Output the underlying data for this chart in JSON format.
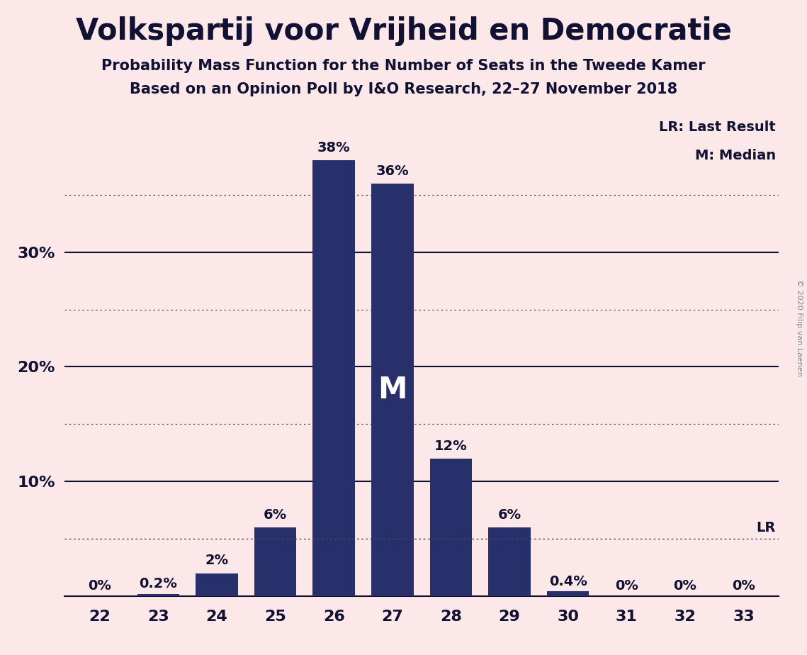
{
  "title": "Volkspartij voor Vrijheid en Democratie",
  "subtitle1": "Probability Mass Function for the Number of Seats in the Tweede Kamer",
  "subtitle2": "Based on an Opinion Poll by I&O Research, 22–27 November 2018",
  "copyright": "© 2020 Filip van Laenen",
  "categories": [
    22,
    23,
    24,
    25,
    26,
    27,
    28,
    29,
    30,
    31,
    32,
    33
  ],
  "values": [
    0.0,
    0.2,
    2.0,
    6.0,
    38.0,
    36.0,
    12.0,
    6.0,
    0.4,
    0.0,
    0.0,
    0.0
  ],
  "labels": [
    "0%",
    "0.2%",
    "2%",
    "6%",
    "38%",
    "36%",
    "12%",
    "6%",
    "0.4%",
    "0%",
    "0%",
    "0%"
  ],
  "bar_color": "#27306b",
  "background_color": "#fce8e8",
  "median_seat": 27,
  "median_label": "M",
  "lr_value": 5.0,
  "lr_label": "LR",
  "legend_lr": "LR: Last Result",
  "legend_m": "M: Median",
  "dotted_lines": [
    5,
    15,
    25,
    35
  ],
  "solid_lines": [
    10,
    20,
    30
  ],
  "ylim": [
    0,
    42
  ],
  "title_fontsize": 30,
  "subtitle_fontsize": 15,
  "tick_fontsize": 16,
  "label_fontsize": 14,
  "legend_fontsize": 14,
  "median_fontsize": 30
}
